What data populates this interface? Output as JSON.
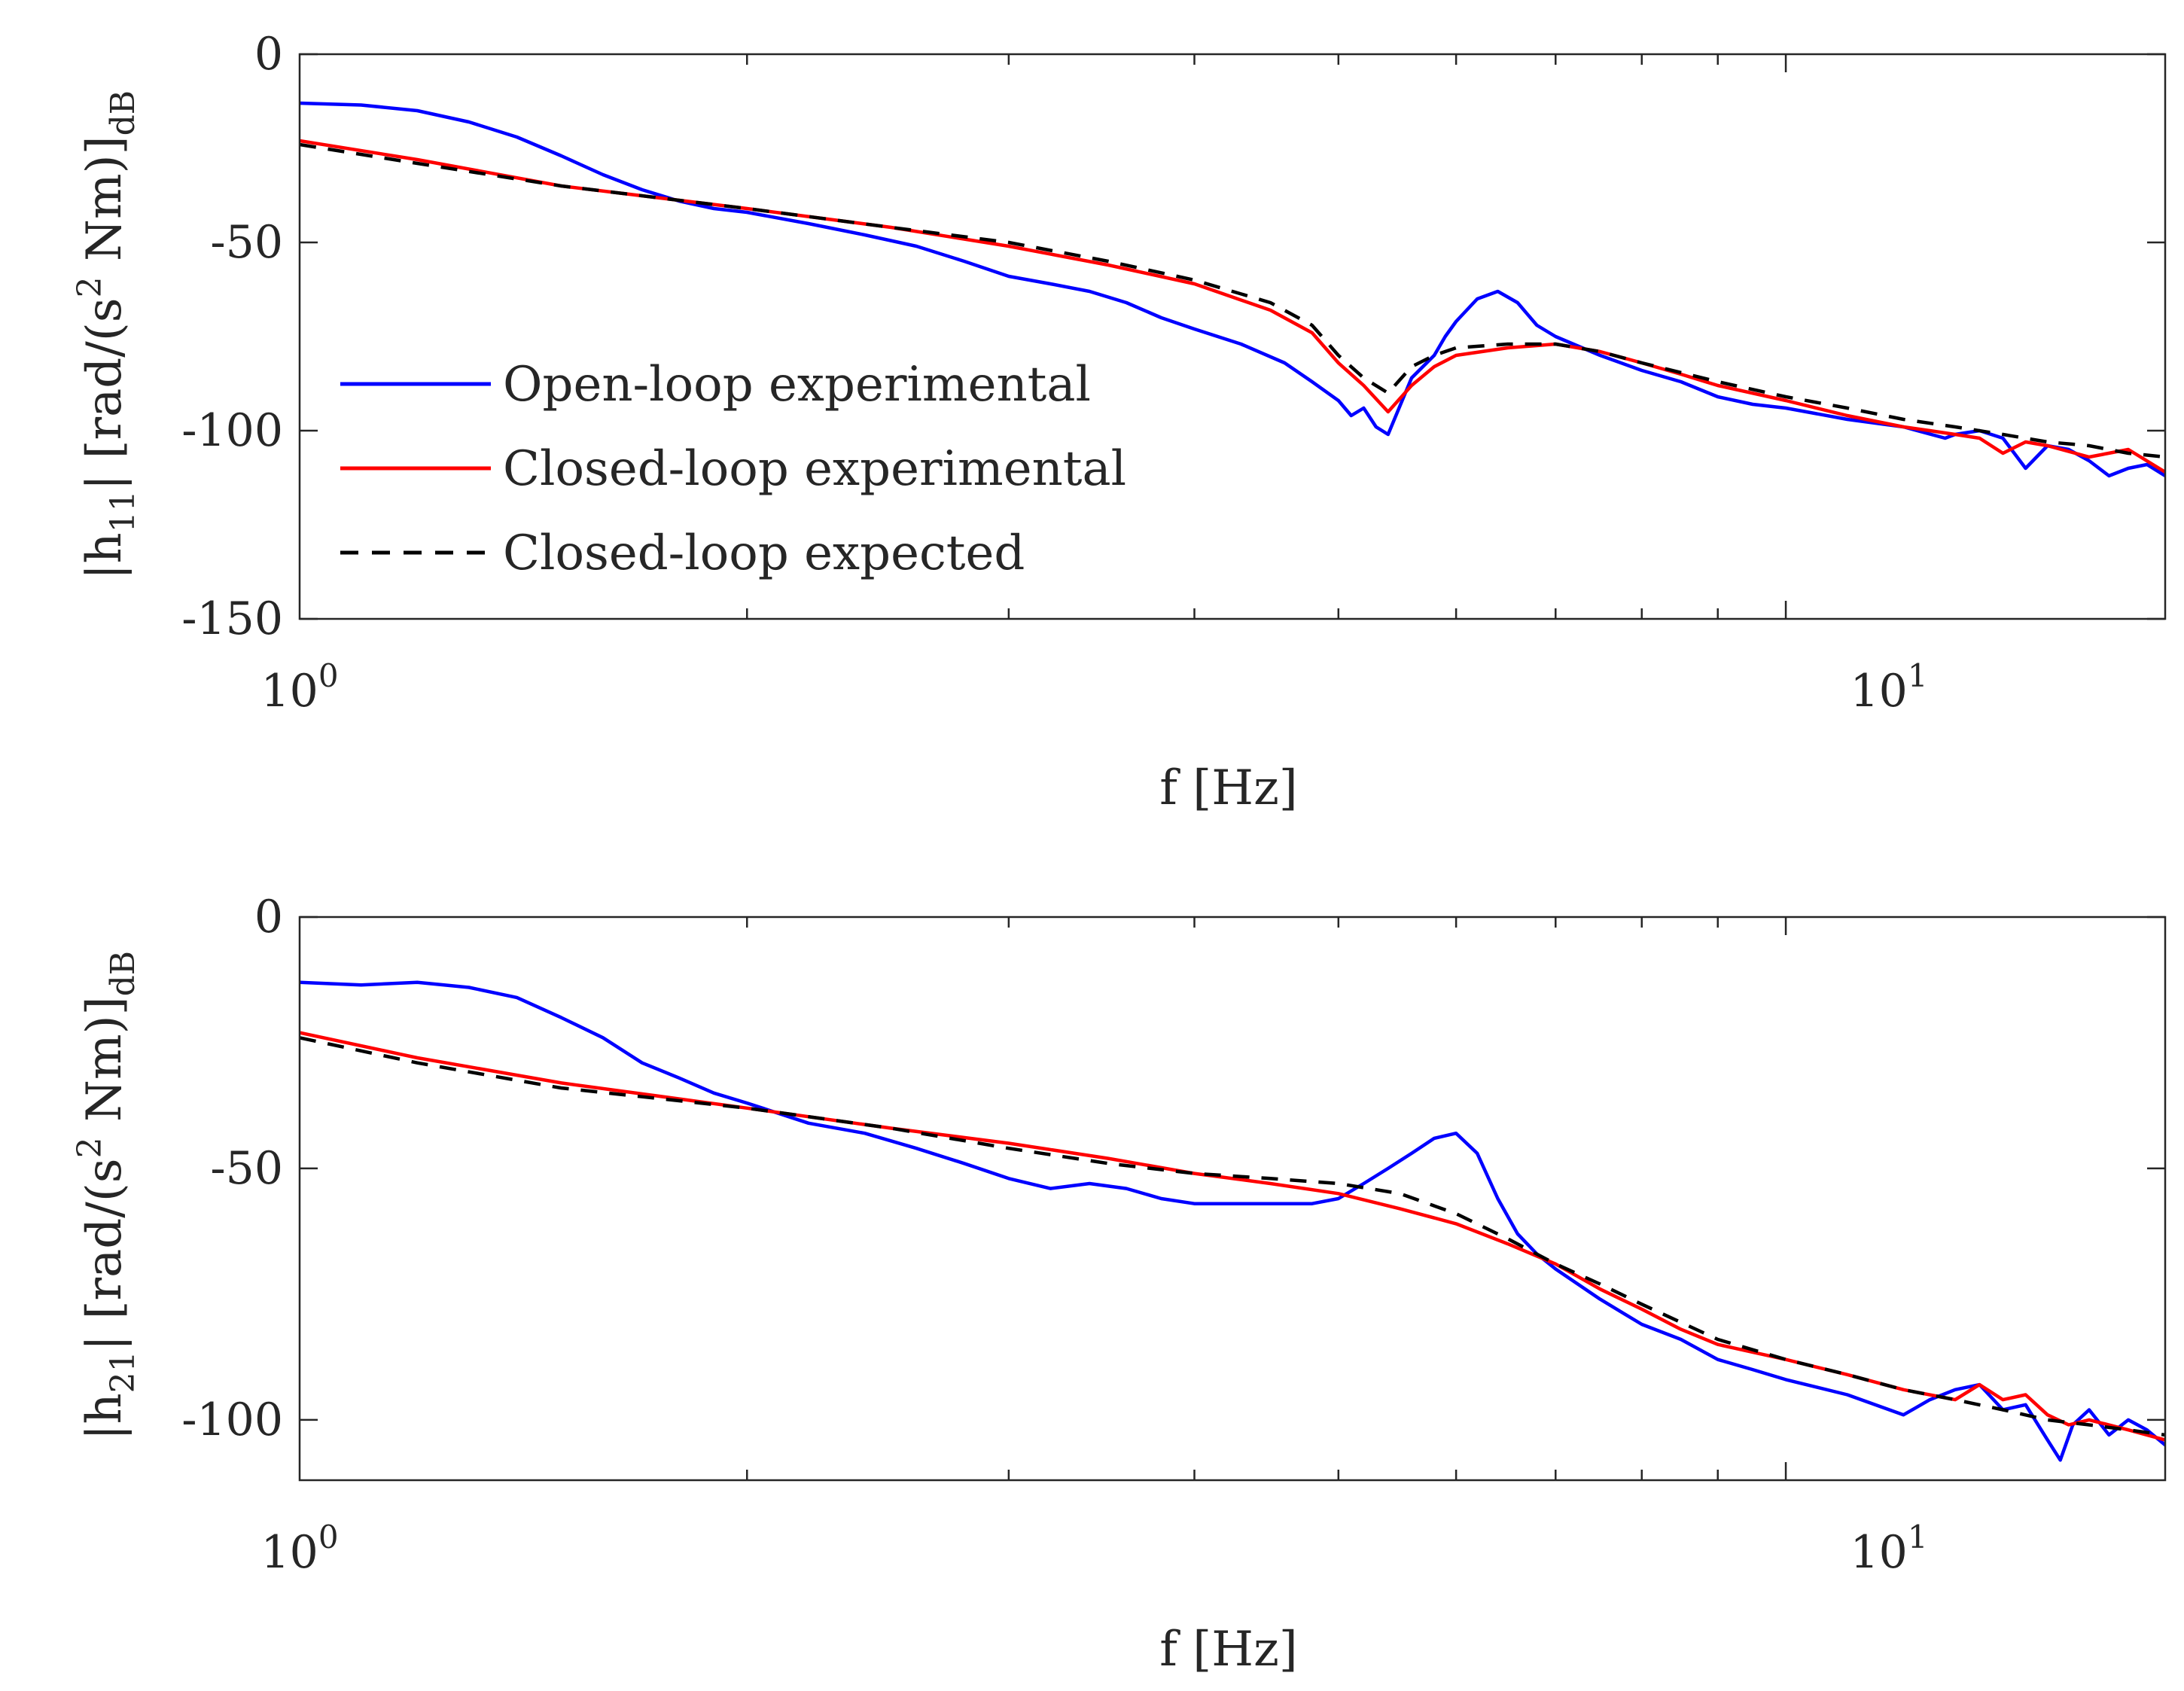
{
  "chart_data": [
    {
      "type": "line",
      "id": "top",
      "ylabel": {
        "lead": "|h",
        "sub": "11",
        "mid": "| [rad/(s",
        "sup": "2",
        "tail": " Nm)]",
        "sub2": "dB"
      },
      "xlabel": "f [Hz]",
      "xscale": "log",
      "xlim": [
        1,
        18
      ],
      "ylim": [
        -150,
        0
      ],
      "yticks": [
        0,
        -50,
        -100,
        -150
      ],
      "ytick_labels": [
        "0",
        "-50",
        "-100",
        "-150"
      ],
      "xtick_labels": [
        {
          "base": "10",
          "exp": "0"
        },
        {
          "base": "10",
          "exp": "1"
        }
      ],
      "legend": {
        "position": "center-left",
        "entries": [
          "Open-loop experimental",
          "Closed-loop experimental",
          "Closed-loop expected"
        ]
      },
      "series": [
        {
          "name": "Open-loop experimental",
          "color": "#0000ff",
          "x": [
            1.0,
            1.1,
            1.2,
            1.3,
            1.4,
            1.5,
            1.6,
            1.7,
            1.8,
            1.9,
            2.0,
            2.2,
            2.4,
            2.6,
            2.8,
            3.0,
            3.2,
            3.4,
            3.6,
            3.8,
            4.0,
            4.3,
            4.6,
            4.8,
            5.0,
            5.1,
            5.2,
            5.3,
            5.4,
            5.6,
            5.8,
            5.9,
            6.0,
            6.2,
            6.4,
            6.6,
            6.8,
            7.0,
            7.5,
            8.0,
            8.5,
            9.0,
            9.5,
            10.0,
            11.0,
            12.0,
            12.8,
            13.0,
            13.5,
            14.0,
            14.5,
            15.0,
            15.5,
            16.0,
            16.5,
            17.0,
            17.5,
            18.0
          ],
          "values": [
            -13,
            -13.5,
            -15,
            -18,
            -22,
            -27,
            -32,
            -36,
            -39,
            -41,
            -42,
            -45,
            -48,
            -51,
            -55,
            -59,
            -61,
            -63,
            -66,
            -70,
            -73,
            -77,
            -82,
            -87,
            -92,
            -96,
            -94,
            -99,
            -101,
            -86,
            -80,
            -75,
            -71,
            -65,
            -63,
            -66,
            -72,
            -75,
            -80,
            -84,
            -87,
            -91,
            -93,
            -94,
            -97,
            -99,
            -102,
            -101,
            -100,
            -102,
            -110,
            -104,
            -105,
            -108,
            -112,
            -110,
            -109,
            -112
          ]
        },
        {
          "name": "Closed-loop experimental",
          "color": "#ff0000",
          "x": [
            1.0,
            1.2,
            1.5,
            2.0,
            2.5,
            3.0,
            3.5,
            4.0,
            4.5,
            4.8,
            5.0,
            5.2,
            5.4,
            5.6,
            5.8,
            6.0,
            6.5,
            7.0,
            7.5,
            8.0,
            8.5,
            9.0,
            10.0,
            11.0,
            12.0,
            12.5,
            13.0,
            13.5,
            14.0,
            14.5,
            15.0,
            16.0,
            17.0,
            18.0
          ],
          "values": [
            -23,
            -28,
            -35,
            -41,
            -46,
            -51,
            -56,
            -61,
            -68,
            -74,
            -82,
            -88,
            -95,
            -88,
            -83,
            -80,
            -78,
            -77,
            -79,
            -82,
            -85,
            -88,
            -92,
            -96,
            -99,
            -100,
            -101,
            -102,
            -106,
            -103,
            -104,
            -107,
            -105,
            -111
          ]
        },
        {
          "name": "Closed-loop expected",
          "color": "#000000",
          "x": [
            1.0,
            1.2,
            1.5,
            2.0,
            2.5,
            3.0,
            3.5,
            4.0,
            4.5,
            4.8,
            5.0,
            5.2,
            5.4,
            5.6,
            5.8,
            6.0,
            6.5,
            7.0,
            7.5,
            8.0,
            9.0,
            10.0,
            11.0,
            12.0,
            13.0,
            14.0,
            15.0,
            16.0,
            17.0,
            18.0
          ],
          "values": [
            -24,
            -29,
            -35,
            -41,
            -46,
            -50,
            -55,
            -60,
            -66,
            -72,
            -80,
            -86,
            -90,
            -83,
            -80,
            -78,
            -77,
            -77,
            -79,
            -82,
            -87,
            -91,
            -94,
            -97,
            -99,
            -101,
            -103,
            -104,
            -106,
            -107
          ]
        }
      ]
    },
    {
      "type": "line",
      "id": "bottom",
      "ylabel": {
        "lead": "|h",
        "sub": "21",
        "mid": "| [rad/(s",
        "sup": "2",
        "tail": " Nm)]",
        "sub2": "dB"
      },
      "xlabel": "f [Hz]",
      "xscale": "log",
      "xlim": [
        1,
        18
      ],
      "ylim": [
        -112,
        0
      ],
      "yticks": [
        0,
        -50,
        -100
      ],
      "ytick_labels": [
        "0",
        "-50",
        "-100"
      ],
      "xtick_labels": [
        {
          "base": "10",
          "exp": "0"
        },
        {
          "base": "10",
          "exp": "1"
        }
      ],
      "series": [
        {
          "name": "Open-loop experimental",
          "color": "#0000ff",
          "x": [
            1.0,
            1.1,
            1.2,
            1.3,
            1.4,
            1.5,
            1.6,
            1.7,
            1.8,
            1.9,
            2.0,
            2.2,
            2.4,
            2.6,
            2.8,
            3.0,
            3.2,
            3.4,
            3.6,
            3.8,
            4.0,
            4.3,
            4.6,
            4.8,
            5.0,
            5.2,
            5.4,
            5.6,
            5.8,
            6.0,
            6.2,
            6.4,
            6.6,
            6.8,
            7.0,
            7.5,
            8.0,
            8.5,
            9.0,
            9.5,
            10.0,
            11.0,
            12.0,
            12.5,
            13.0,
            13.5,
            14.0,
            14.5,
            15.0,
            15.3,
            15.6,
            16.0,
            16.5,
            17.0,
            17.5,
            18.0
          ],
          "values": [
            -13,
            -13.5,
            -13,
            -14,
            -16,
            -20,
            -24,
            -29,
            -32,
            -35,
            -37,
            -41,
            -43,
            -46,
            -49,
            -52,
            -54,
            -53,
            -54,
            -56,
            -57,
            -57,
            -57,
            -57,
            -56,
            -53,
            -50,
            -47,
            -44,
            -43,
            -47,
            -56,
            -63,
            -67,
            -70,
            -76,
            -81,
            -84,
            -88,
            -90,
            -92,
            -95,
            -99,
            -96,
            -94,
            -93,
            -98,
            -97,
            -104,
            -108,
            -101,
            -98,
            -103,
            -100,
            -102,
            -105
          ]
        },
        {
          "name": "Closed-loop experimental",
          "color": "#ff0000",
          "x": [
            1.0,
            1.2,
            1.5,
            2.0,
            2.5,
            3.0,
            3.5,
            4.0,
            4.5,
            5.0,
            5.5,
            6.0,
            6.5,
            7.0,
            7.5,
            8.0,
            8.5,
            9.0,
            10.0,
            11.0,
            12.0,
            13.0,
            13.5,
            14.0,
            14.5,
            15.0,
            15.5,
            16.0,
            17.0,
            18.0
          ],
          "values": [
            -23,
            -28,
            -33,
            -38,
            -42,
            -45,
            -48,
            -51,
            -53,
            -55,
            -58,
            -61,
            -65,
            -69,
            -74,
            -78,
            -82,
            -85,
            -88,
            -91,
            -94,
            -96,
            -93,
            -96,
            -95,
            -99,
            -101,
            -100,
            -102,
            -104
          ]
        },
        {
          "name": "Closed-loop expected",
          "color": "#000000",
          "x": [
            1.0,
            1.2,
            1.5,
            2.0,
            2.5,
            3.0,
            3.5,
            4.0,
            4.5,
            5.0,
            5.5,
            6.0,
            6.5,
            7.0,
            7.5,
            8.0,
            9.0,
            10.0,
            11.0,
            12.0,
            13.0,
            14.0,
            15.0,
            16.0,
            17.0,
            18.0
          ],
          "values": [
            -24,
            -29,
            -34,
            -38,
            -42,
            -46,
            -49,
            -51,
            -52,
            -53,
            -55,
            -59,
            -64,
            -69,
            -73,
            -77,
            -84,
            -88,
            -91,
            -94,
            -96,
            -98,
            -100,
            -101,
            -102,
            -103
          ]
        }
      ]
    }
  ]
}
